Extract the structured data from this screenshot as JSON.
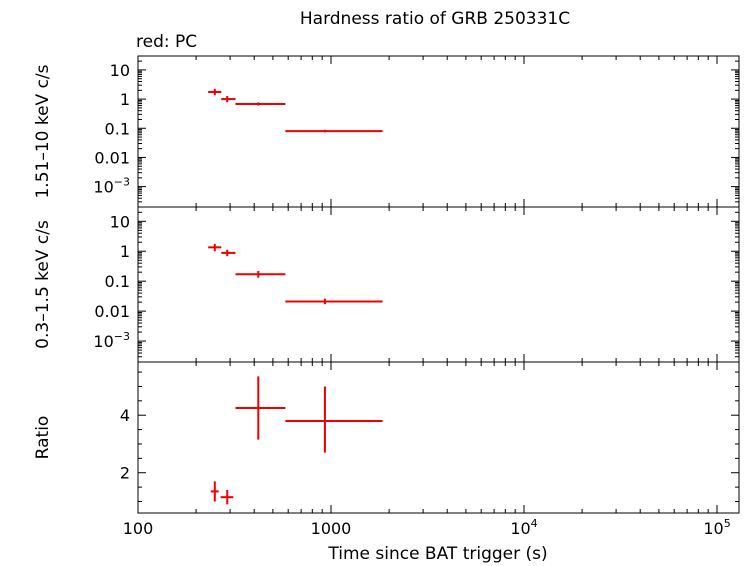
{
  "chart_data": {
    "type": "scatter",
    "title": "Hardness ratio of GRB 250331C",
    "subtitle": "red: PC",
    "xlabel": "Time since BAT trigger (s)",
    "xscale": "log",
    "xlim": [
      100,
      130000
    ],
    "x_ticks": [
      {
        "value": 100,
        "label": "100"
      },
      {
        "value": 1000,
        "label": "1000"
      },
      {
        "value": 10000,
        "label": "10",
        "exp": "4"
      },
      {
        "value": 100000,
        "label": "10",
        "exp": "5"
      }
    ],
    "series_color": "#ee0000",
    "panels": [
      {
        "ylabel": "1.51–10 keV c/s",
        "yscale": "log",
        "ylim": [
          0.0002,
          30
        ],
        "y_ticks": [
          {
            "value": 10,
            "label": "10"
          },
          {
            "value": 1,
            "label": "1"
          },
          {
            "value": 0.1,
            "label": "0.1"
          },
          {
            "value": 0.01,
            "label": "0.01"
          },
          {
            "value": 0.001,
            "label": "10",
            "exp": "−3"
          }
        ],
        "points": [
          {
            "x": 250,
            "xlo": 231,
            "xhi": 270,
            "y": 1.75,
            "ylo": 1.35,
            "yhi": 2.25
          },
          {
            "x": 290,
            "xlo": 270,
            "xhi": 320,
            "y": 1.0,
            "ylo": 0.78,
            "yhi": 1.28
          },
          {
            "x": 420,
            "xlo": 320,
            "xhi": 580,
            "y": 0.68,
            "ylo": 0.6,
            "yhi": 0.77
          },
          {
            "x": 930,
            "xlo": 580,
            "xhi": 1850,
            "y": 0.08,
            "ylo": 0.072,
            "yhi": 0.089
          }
        ]
      },
      {
        "ylabel": "0.3–1.5 keV c/s",
        "yscale": "log",
        "ylim": [
          0.0002,
          30
        ],
        "y_ticks": [
          {
            "value": 10,
            "label": "10"
          },
          {
            "value": 1,
            "label": "1"
          },
          {
            "value": 0.1,
            "label": "0.1"
          },
          {
            "value": 0.01,
            "label": "0.01"
          },
          {
            "value": 0.001,
            "label": "10",
            "exp": "−3"
          }
        ],
        "points": [
          {
            "x": 250,
            "xlo": 231,
            "xhi": 270,
            "y": 1.35,
            "ylo": 1.0,
            "yhi": 1.75
          },
          {
            "x": 290,
            "xlo": 270,
            "xhi": 320,
            "y": 0.88,
            "ylo": 0.68,
            "yhi": 1.12
          },
          {
            "x": 420,
            "xlo": 320,
            "xhi": 580,
            "y": 0.17,
            "ylo": 0.13,
            "yhi": 0.22
          },
          {
            "x": 930,
            "xlo": 580,
            "xhi": 1850,
            "y": 0.021,
            "ylo": 0.017,
            "yhi": 0.026
          }
        ]
      },
      {
        "ylabel": "Ratio",
        "yscale": "linear",
        "ylim": [
          0.6,
          5.85
        ],
        "y_ticks": [
          {
            "value": 2,
            "label": "2"
          },
          {
            "value": 4,
            "label": "4"
          }
        ],
        "points": [
          {
            "x": 250,
            "xlo": 238,
            "xhi": 262,
            "y": 1.35,
            "ylo": 1.0,
            "yhi": 1.7
          },
          {
            "x": 290,
            "xlo": 268,
            "xhi": 312,
            "y": 1.15,
            "ylo": 0.9,
            "yhi": 1.4
          },
          {
            "x": 420,
            "xlo": 320,
            "xhi": 580,
            "y": 4.25,
            "ylo": 3.15,
            "yhi": 5.35
          },
          {
            "x": 930,
            "xlo": 580,
            "xhi": 1850,
            "y": 3.8,
            "ylo": 2.7,
            "yhi": 5.0
          }
        ]
      }
    ]
  }
}
